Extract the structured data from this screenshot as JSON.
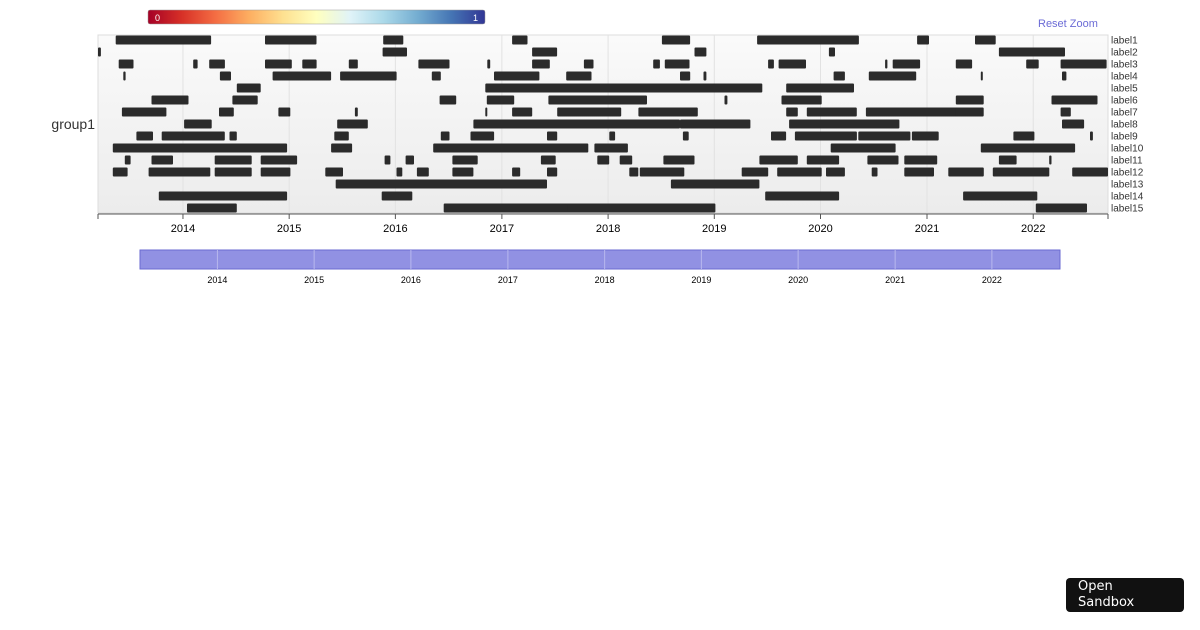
{
  "chart_data": {
    "type": "timeline",
    "group": "group1",
    "color_scale": {
      "min_label": "0",
      "max_label": "1",
      "colors": [
        "#a50026",
        "#d73027",
        "#f46d43",
        "#fdae61",
        "#fee090",
        "#ffffbf",
        "#e0f3f8",
        "#abd9e9",
        "#74add1",
        "#4575b4",
        "#313695"
      ]
    },
    "bar_color": "#2b2b2b",
    "x_domain": [
      "2013-03-15",
      "2022-09-15"
    ],
    "x_ticks": [
      "2014",
      "2015",
      "2016",
      "2017",
      "2018",
      "2019",
      "2020",
      "2021",
      "2022"
    ],
    "labels": [
      "label1",
      "label2",
      "label3",
      "label4",
      "label5",
      "label6",
      "label7",
      "label8",
      "label9",
      "label10",
      "label11",
      "label12",
      "label13",
      "label14",
      "label15"
    ],
    "rows": [
      {
        "label": "label1",
        "intervals": [
          [
            "2013-05-15",
            "2014-04-08"
          ],
          [
            "2014-10-10",
            "2015-04-05"
          ],
          [
            "2015-11-20",
            "2016-01-28"
          ],
          [
            "2017-02-05",
            "2017-03-30"
          ],
          [
            "2018-07-05",
            "2018-10-10"
          ],
          [
            "2019-05-28",
            "2020-05-12"
          ],
          [
            "2020-11-28",
            "2021-01-08"
          ],
          [
            "2021-06-15",
            "2021-08-25"
          ]
        ]
      },
      {
        "label": "label2",
        "intervals": [
          [
            "2013-03-15",
            "2013-03-25"
          ],
          [
            "2015-11-18",
            "2016-02-10"
          ],
          [
            "2017-04-15",
            "2017-07-10"
          ],
          [
            "2018-10-25",
            "2018-12-05"
          ],
          [
            "2020-01-30",
            "2020-02-20"
          ],
          [
            "2021-09-05",
            "2022-04-20"
          ]
        ]
      },
      {
        "label": "label3",
        "intervals": [
          [
            "2013-05-25",
            "2013-07-15"
          ],
          [
            "2014-02-05",
            "2014-02-20"
          ],
          [
            "2014-04-01",
            "2014-05-25"
          ],
          [
            "2014-10-10",
            "2015-01-10"
          ],
          [
            "2015-02-15",
            "2015-04-05"
          ],
          [
            "2015-07-25",
            "2015-08-25"
          ],
          [
            "2016-03-20",
            "2016-07-05"
          ],
          [
            "2016-11-12",
            "2016-11-22"
          ],
          [
            "2017-04-15",
            "2017-06-15"
          ],
          [
            "2017-10-10",
            "2017-11-12"
          ],
          [
            "2018-06-05",
            "2018-06-28"
          ],
          [
            "2018-07-15",
            "2018-10-08"
          ],
          [
            "2019-07-05",
            "2019-07-25"
          ],
          [
            "2019-08-10",
            "2019-11-12"
          ],
          [
            "2020-08-10",
            "2020-08-18"
          ],
          [
            "2020-09-05",
            "2020-12-08"
          ],
          [
            "2021-04-10",
            "2021-06-05"
          ],
          [
            "2021-12-08",
            "2022-01-20"
          ],
          [
            "2022-04-05",
            "2022-09-10"
          ]
        ]
      },
      {
        "label": "label4",
        "intervals": [
          [
            "2013-06-10",
            "2013-06-18"
          ],
          [
            "2014-05-08",
            "2014-06-15"
          ],
          [
            "2014-11-05",
            "2015-05-25"
          ],
          [
            "2015-06-25",
            "2016-01-05"
          ],
          [
            "2016-05-05",
            "2016-06-05"
          ],
          [
            "2016-12-05",
            "2017-05-10"
          ],
          [
            "2017-08-10",
            "2017-11-05"
          ],
          [
            "2018-09-05",
            "2018-10-10"
          ],
          [
            "2018-11-25",
            "2018-12-05"
          ],
          [
            "2020-02-15",
            "2020-03-25"
          ],
          [
            "2020-06-15",
            "2020-11-25"
          ],
          [
            "2021-07-05",
            "2021-07-12"
          ],
          [
            "2022-04-10",
            "2022-04-25"
          ]
        ]
      },
      {
        "label": "label5",
        "intervals": [
          [
            "2014-07-05",
            "2014-09-25"
          ],
          [
            "2016-11-05",
            "2019-06-15"
          ],
          [
            "2019-09-05",
            "2020-04-25"
          ]
        ]
      },
      {
        "label": "label6",
        "intervals": [
          [
            "2013-09-15",
            "2014-01-20"
          ],
          [
            "2014-06-20",
            "2014-09-15"
          ],
          [
            "2016-06-01",
            "2016-07-28"
          ],
          [
            "2016-11-10",
            "2017-02-12"
          ],
          [
            "2017-06-10",
            "2018-05-15"
          ],
          [
            "2019-02-05",
            "2019-02-15"
          ],
          [
            "2019-08-20",
            "2020-01-05"
          ],
          [
            "2021-04-10",
            "2021-07-15"
          ],
          [
            "2022-03-05",
            "2022-08-10"
          ]
        ]
      },
      {
        "label": "label7",
        "intervals": [
          [
            "2013-06-05",
            "2013-11-05"
          ],
          [
            "2014-05-05",
            "2014-06-25"
          ],
          [
            "2014-11-25",
            "2015-01-05"
          ],
          [
            "2015-08-15",
            "2015-08-25"
          ],
          [
            "2016-11-05",
            "2016-11-12"
          ],
          [
            "2017-02-05",
            "2017-04-15"
          ],
          [
            "2017-07-10",
            "2018-02-15"
          ],
          [
            "2018-04-15",
            "2018-11-05"
          ],
          [
            "2019-09-05",
            "2019-10-15"
          ],
          [
            "2019-11-15",
            "2020-05-05"
          ],
          [
            "2020-06-05",
            "2021-04-25"
          ],
          [
            "2021-04-10",
            "2021-07-15"
          ],
          [
            "2022-04-05",
            "2022-05-10"
          ]
        ]
      },
      {
        "label": "label8",
        "intervals": [
          [
            "2014-01-05",
            "2014-04-10"
          ],
          [
            "2015-06-15",
            "2015-09-28"
          ],
          [
            "2016-09-25",
            "2018-09-05"
          ],
          [
            "2018-09-05",
            "2019-05-05"
          ],
          [
            "2019-09-15",
            "2020-09-28"
          ],
          [
            "2022-04-10",
            "2022-06-25"
          ]
        ]
      },
      {
        "label": "label9",
        "intervals": [
          [
            "2013-07-25",
            "2013-09-20"
          ],
          [
            "2013-10-20",
            "2014-05-25"
          ],
          [
            "2014-06-10",
            "2014-07-05"
          ],
          [
            "2015-06-05",
            "2015-07-25"
          ],
          [
            "2016-06-05",
            "2016-07-05"
          ],
          [
            "2016-09-15",
            "2016-12-05"
          ],
          [
            "2017-06-05",
            "2017-07-10"
          ],
          [
            "2018-01-05",
            "2018-01-25"
          ],
          [
            "2018-09-15",
            "2018-10-05"
          ],
          [
            "2019-07-15",
            "2019-09-05"
          ],
          [
            "2019-10-05",
            "2020-05-05"
          ],
          [
            "2020-05-10",
            "2020-11-05"
          ],
          [
            "2020-11-10",
            "2021-02-10"
          ],
          [
            "2021-10-25",
            "2022-01-05"
          ],
          [
            "2022-07-15",
            "2022-07-25"
          ]
        ]
      },
      {
        "label": "label10",
        "intervals": [
          [
            "2013-05-05",
            "2014-12-25"
          ],
          [
            "2015-05-25",
            "2015-08-05"
          ],
          [
            "2016-05-10",
            "2017-10-25"
          ],
          [
            "2017-11-15",
            "2018-03-10"
          ],
          [
            "2020-02-05",
            "2020-09-15"
          ],
          [
            "2021-07-05",
            "2022-05-25"
          ]
        ]
      },
      {
        "label": "label11",
        "intervals": [
          [
            "2013-06-15",
            "2013-07-05"
          ],
          [
            "2013-09-15",
            "2013-11-28"
          ],
          [
            "2014-04-20",
            "2014-08-25"
          ],
          [
            "2014-09-25",
            "2015-01-28"
          ],
          [
            "2015-11-25",
            "2015-12-15"
          ],
          [
            "2016-02-05",
            "2016-03-05"
          ],
          [
            "2016-07-15",
            "2016-10-10"
          ],
          [
            "2017-05-15",
            "2017-07-05"
          ],
          [
            "2017-11-25",
            "2018-01-05"
          ],
          [
            "2018-02-10",
            "2018-03-25"
          ],
          [
            "2018-07-10",
            "2018-10-25"
          ],
          [
            "2019-06-05",
            "2019-10-15"
          ],
          [
            "2019-11-15",
            "2020-03-05"
          ],
          [
            "2020-06-10",
            "2020-09-25"
          ],
          [
            "2020-10-15",
            "2021-02-05"
          ],
          [
            "2021-09-05",
            "2021-11-05"
          ],
          [
            "2022-02-25",
            "2022-03-05"
          ]
        ]
      },
      {
        "label": "label12",
        "intervals": [
          [
            "2013-05-05",
            "2013-06-25"
          ],
          [
            "2013-09-05",
            "2014-04-05"
          ],
          [
            "2014-04-20",
            "2014-08-25"
          ],
          [
            "2014-09-25",
            "2015-01-05"
          ],
          [
            "2015-05-05",
            "2015-07-05"
          ],
          [
            "2016-01-05",
            "2016-01-25"
          ],
          [
            "2016-03-15",
            "2016-04-25"
          ],
          [
            "2016-07-15",
            "2016-09-25"
          ],
          [
            "2017-02-05",
            "2017-03-05"
          ],
          [
            "2017-06-05",
            "2017-07-10"
          ],
          [
            "2018-03-15",
            "2018-04-15"
          ],
          [
            "2018-04-20",
            "2018-09-20"
          ],
          [
            "2019-04-05",
            "2019-07-05"
          ],
          [
            "2019-08-05",
            "2020-01-05"
          ],
          [
            "2020-01-20",
            "2020-03-25"
          ],
          [
            "2020-06-25",
            "2020-07-15"
          ],
          [
            "2020-10-15",
            "2021-01-25"
          ],
          [
            "2021-03-15",
            "2021-07-15"
          ],
          [
            "2021-08-15",
            "2022-02-25"
          ],
          [
            "2022-05-15",
            "2022-09-15"
          ]
        ]
      },
      {
        "label": "label13",
        "intervals": [
          [
            "2015-06-10",
            "2017-06-05"
          ],
          [
            "2018-08-05",
            "2019-06-05"
          ]
        ]
      },
      {
        "label": "label14",
        "intervals": [
          [
            "2013-10-10",
            "2014-12-25"
          ],
          [
            "2015-11-15",
            "2016-02-28"
          ],
          [
            "2019-06-25",
            "2020-03-05"
          ],
          [
            "2021-05-05",
            "2022-01-15"
          ]
        ]
      },
      {
        "label": "label15",
        "intervals": [
          [
            "2014-01-15",
            "2014-07-05"
          ],
          [
            "2016-06-15",
            "2017-09-25"
          ],
          [
            "2017-08-15",
            "2019-01-05"
          ],
          [
            "2022-01-10",
            "2022-07-05"
          ]
        ]
      }
    ]
  },
  "ui": {
    "reset_zoom": "Reset Zoom",
    "open_sandbox": "Open Sandbox"
  }
}
